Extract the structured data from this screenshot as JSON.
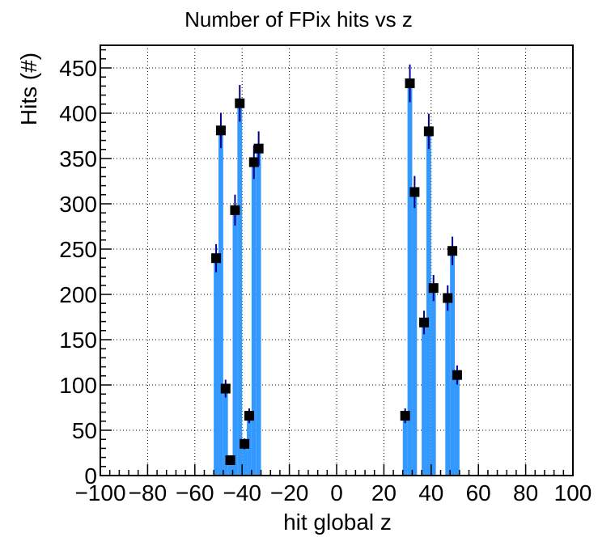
{
  "chart_data": {
    "type": "bar",
    "title": "Number of FPix hits vs z",
    "xlabel": "hit global z",
    "ylabel": "Hits (#)",
    "xlim": [
      -100,
      100
    ],
    "ylim": [
      0,
      475
    ],
    "x_ticks": [
      -100,
      -80,
      -60,
      -40,
      -20,
      0,
      20,
      40,
      60,
      80,
      100
    ],
    "y_ticks": [
      0,
      50,
      100,
      150,
      200,
      250,
      300,
      350,
      400,
      450
    ],
    "grid": true,
    "bin_width": 2,
    "colors": {
      "fill": "#3399ff",
      "marker": "#000000",
      "error_bar": "#00008b"
    },
    "points": [
      {
        "x": -51,
        "y": 240
      },
      {
        "x": -49,
        "y": 381
      },
      {
        "x": -47,
        "y": 96
      },
      {
        "x": -45,
        "y": 17
      },
      {
        "x": -43,
        "y": 293
      },
      {
        "x": -41,
        "y": 411
      },
      {
        "x": -39,
        "y": 35
      },
      {
        "x": -37,
        "y": 66
      },
      {
        "x": -35,
        "y": 346
      },
      {
        "x": -33,
        "y": 361
      },
      {
        "x": 29,
        "y": 66
      },
      {
        "x": 31,
        "y": 433
      },
      {
        "x": 33,
        "y": 313
      },
      {
        "x": 37,
        "y": 169
      },
      {
        "x": 39,
        "y": 380
      },
      {
        "x": 41,
        "y": 207
      },
      {
        "x": 47,
        "y": 196
      },
      {
        "x": 49,
        "y": 248
      },
      {
        "x": 51,
        "y": 111
      }
    ]
  }
}
